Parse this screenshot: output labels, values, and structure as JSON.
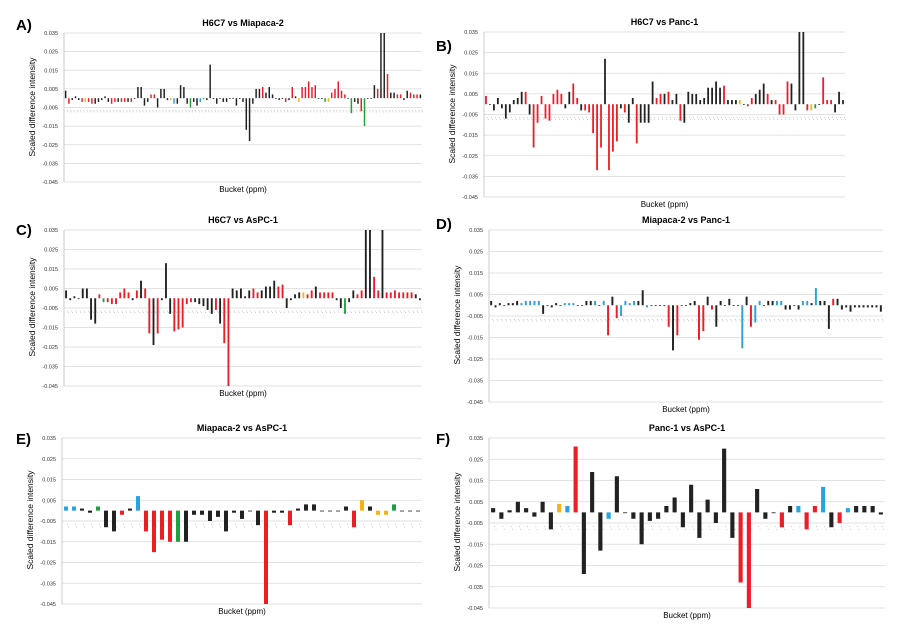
{
  "figure": {
    "colors": {
      "black": "#222222",
      "red": "#ee1c25",
      "green": "#1fa040",
      "blue": "#29a3e0",
      "orange": "#f5b21b",
      "grid": "#d9d9d9",
      "axis": "#bfbfbf"
    }
  },
  "chart_data": [
    {
      "id": "A",
      "letter": "A)",
      "type": "bar",
      "title": "H6C7 vs Miapaca-2",
      "xlabel": "Bucket (ppm)",
      "ylabel": "Scaled difference intensity",
      "ylim": [
        -0.045,
        0.035
      ],
      "yticks": [
        "0.035",
        "0.025",
        "0.015",
        "0.005",
        "-0.005",
        "-0.015",
        "-0.025",
        "-0.035",
        "-0.045"
      ],
      "grid": true,
      "legend": "none",
      "values": [
        0.004,
        -0.003,
        -0.001,
        0.001,
        -0.001,
        -0.002,
        -0.002,
        -0.002,
        -0.003,
        -0.003,
        -0.002,
        -0.001,
        0.001,
        -0.002,
        -0.003,
        -0.002,
        -0.002,
        -0.002,
        -0.002,
        -0.002,
        -0.002,
        0.0,
        0.006,
        0.006,
        -0.004,
        -0.002,
        0.002,
        0.002,
        -0.005,
        0.005,
        0.005,
        -0.001,
        -0.001,
        -0.003,
        -0.003,
        0.007,
        0.006,
        -0.003,
        -0.005,
        -0.002,
        -0.004,
        -0.002,
        0.0,
        -0.001,
        0.018,
        0.0,
        -0.003,
        0.0,
        -0.002,
        -0.002,
        0.0,
        0.0,
        -0.004,
        0.0,
        -0.002,
        -0.017,
        -0.023,
        -0.003,
        0.005,
        0.005,
        0.006,
        0.003,
        0.006,
        0.002,
        0.0,
        -0.001,
        0.0,
        -0.002,
        -0.001,
        0.006,
        0.001,
        -0.002,
        0.006,
        0.006,
        0.009,
        0.006,
        0.007,
        0.0,
        0.0,
        -0.002,
        -0.002,
        0.003,
        0.005,
        0.009,
        0.004,
        0.002,
        0.0,
        -0.008,
        -0.002,
        -0.003,
        -0.007,
        -0.015,
        0.0,
        0.0,
        0.007,
        0.005,
        0.035,
        0.035,
        0.013,
        0.003,
        0.003,
        0.002,
        0.002,
        -0.001,
        0.004,
        0.003,
        0.002,
        0.002,
        0.002
      ],
      "colors": [
        "k",
        "r",
        "k",
        "k",
        "k",
        "r",
        "o",
        "r",
        "r",
        "k",
        "k",
        "k",
        "k",
        "k",
        "r",
        "r",
        "k",
        "r",
        "r",
        "k",
        "r",
        "k",
        "k",
        "k",
        "k",
        "k",
        "r",
        "r",
        "k",
        "k",
        "k",
        "k",
        "o",
        "b",
        "k",
        "k",
        "k",
        "k",
        "g",
        "k",
        "k",
        "b",
        "g",
        "k",
        "k",
        "k",
        "k",
        "k",
        "k",
        "k",
        "k",
        "k",
        "k",
        "k",
        "k",
        "k",
        "k",
        "k",
        "k",
        "k",
        "r",
        "k",
        "k",
        "k",
        "k",
        "k",
        "k",
        "r",
        "k",
        "r",
        "k",
        "o",
        "r",
        "r",
        "r",
        "r",
        "r",
        "k",
        "k",
        "g",
        "o",
        "r",
        "r",
        "r",
        "r",
        "r",
        "k",
        "g",
        "k",
        "k",
        "r",
        "g",
        "k",
        "k",
        "k",
        "r",
        "k",
        "k",
        "r",
        "k",
        "k",
        "r",
        "r",
        "k",
        "k",
        "r",
        "r",
        "r",
        "k"
      ]
    },
    {
      "id": "B",
      "letter": "B)",
      "type": "bar",
      "title": "H6C7 vs Panc-1",
      "xlabel": "Bucket (ppm)",
      "ylabel": "Scaled difference intensity",
      "ylim": [
        -0.045,
        0.035
      ],
      "yticks": [
        "0.035",
        "0.025",
        "0.015",
        "0.005",
        "-0.005",
        "-0.015",
        "-0.025",
        "-0.035",
        "-0.045"
      ],
      "grid": true,
      "legend": "none",
      "values": [
        0.004,
        0.0,
        -0.003,
        0.003,
        -0.002,
        -0.007,
        -0.004,
        0.002,
        0.003,
        0.006,
        0.006,
        -0.005,
        -0.021,
        -0.009,
        0.004,
        -0.007,
        -0.008,
        0.005,
        0.007,
        0.005,
        -0.002,
        0.006,
        0.01,
        0.003,
        -0.003,
        -0.003,
        -0.004,
        -0.014,
        -0.032,
        -0.021,
        0.022,
        -0.032,
        -0.023,
        -0.018,
        -0.002,
        -0.004,
        -0.009,
        0.003,
        -0.019,
        -0.009,
        -0.009,
        -0.009,
        0.011,
        0.003,
        0.005,
        0.005,
        0.006,
        0.002,
        0.005,
        -0.008,
        -0.009,
        0.006,
        0.005,
        0.005,
        0.002,
        0.003,
        0.008,
        0.008,
        0.011,
        0.008,
        0.009,
        0.002,
        0.002,
        0.002,
        0.002,
        0.0,
        -0.001,
        0.003,
        0.005,
        0.007,
        0.01,
        0.005,
        0.002,
        0.002,
        -0.005,
        -0.005,
        0.011,
        0.01,
        -0.003,
        0.035,
        0.035,
        -0.003,
        -0.003,
        -0.002,
        0.0,
        0.013,
        0.002,
        0.002,
        -0.004,
        0.006,
        0.002
      ],
      "colors": [
        "r",
        "k",
        "k",
        "k",
        "k",
        "k",
        "k",
        "k",
        "k",
        "k",
        "r",
        "k",
        "r",
        "r",
        "r",
        "r",
        "r",
        "r",
        "r",
        "r",
        "k",
        "k",
        "r",
        "r",
        "k",
        "r",
        "r",
        "r",
        "r",
        "r",
        "k",
        "r",
        "r",
        "r",
        "k",
        "r",
        "k",
        "k",
        "r",
        "k",
        "k",
        "k",
        "k",
        "r",
        "r",
        "k",
        "r",
        "k",
        "k",
        "r",
        "k",
        "k",
        "k",
        "k",
        "k",
        "k",
        "k",
        "k",
        "k",
        "k",
        "r",
        "k",
        "k",
        "k",
        "o",
        "k",
        "r",
        "r",
        "k",
        "k",
        "k",
        "r",
        "k",
        "r",
        "r",
        "r",
        "r",
        "k",
        "k",
        "k",
        "k",
        "r",
        "o",
        "g",
        "k",
        "r",
        "r",
        "r",
        "k",
        "k",
        "k"
      ]
    },
    {
      "id": "C",
      "letter": "C)",
      "type": "bar",
      "title": "H6C7 vs AsPC-1",
      "xlabel": "Bucket (ppm)",
      "ylabel": "Scaled difference intensity",
      "ylim": [
        -0.045,
        0.035
      ],
      "yticks": [
        "0.035",
        "0.025",
        "0.015",
        "0.005",
        "-0.005",
        "-0.015",
        "-0.025",
        "-0.035",
        "-0.045"
      ],
      "grid": true,
      "legend": "none",
      "values": [
        0.004,
        -0.001,
        0.001,
        0.0,
        0.005,
        0.005,
        -0.011,
        -0.013,
        0.002,
        -0.002,
        -0.002,
        -0.003,
        -0.003,
        0.003,
        0.005,
        0.003,
        -0.001,
        0.004,
        0.009,
        0.005,
        -0.018,
        -0.024,
        -0.018,
        -0.001,
        0.018,
        -0.008,
        -0.017,
        -0.016,
        -0.015,
        -0.003,
        -0.002,
        -0.002,
        -0.003,
        -0.004,
        -0.006,
        -0.008,
        -0.006,
        -0.013,
        -0.023,
        -0.045,
        0.005,
        0.004,
        0.005,
        0.001,
        0.004,
        0.005,
        0.003,
        0.004,
        0.006,
        0.006,
        0.009,
        0.006,
        0.007,
        -0.005,
        -0.001,
        0.002,
        0.003,
        0.003,
        0.002,
        0.004,
        0.006,
        0.003,
        0.003,
        0.003,
        0.003,
        -0.001,
        -0.005,
        -0.008,
        -0.002,
        0.004,
        0.002,
        0.004,
        0.035,
        0.035,
        0.011,
        0.004,
        0.035,
        0.003,
        0.003,
        0.004,
        0.003,
        0.003,
        0.003,
        0.003,
        0.002,
        -0.001
      ],
      "colors": [
        "k",
        "k",
        "k",
        "k",
        "k",
        "k",
        "k",
        "k",
        "r",
        "g",
        "r",
        "r",
        "r",
        "r",
        "r",
        "r",
        "k",
        "r",
        "k",
        "r",
        "r",
        "k",
        "r",
        "k",
        "k",
        "k",
        "r",
        "r",
        "r",
        "r",
        "r",
        "k",
        "k",
        "k",
        "k",
        "k",
        "r",
        "k",
        "r",
        "r",
        "k",
        "k",
        "k",
        "k",
        "k",
        "r",
        "r",
        "k",
        "k",
        "k",
        "k",
        "r",
        "r",
        "k",
        "k",
        "k",
        "k",
        "o",
        "r",
        "r",
        "k",
        "r",
        "r",
        "r",
        "r",
        "k",
        "k",
        "g",
        "k",
        "k",
        "r",
        "r",
        "k",
        "k",
        "r",
        "r",
        "k",
        "r",
        "r",
        "r",
        "r",
        "r",
        "r",
        "r",
        "k",
        "k"
      ]
    },
    {
      "id": "D",
      "letter": "D)",
      "type": "bar",
      "title": "Miapaca-2 vs Panc-1",
      "xlabel": "Bucket (ppm)",
      "ylabel": "Scaled difference intensity",
      "ylim": [
        -0.045,
        0.035
      ],
      "yticks": [
        "0.035",
        "0.025",
        "0.015",
        "0.005",
        "-0.005",
        "-0.015",
        "-0.025",
        "-0.035",
        "-0.045"
      ],
      "grid": true,
      "legend": "none",
      "values": [
        0.002,
        -0.001,
        0.001,
        0.0,
        0.001,
        0.001,
        0.002,
        0.001,
        0.002,
        0.002,
        0.002,
        0.002,
        -0.004,
        0.0,
        -0.001,
        0.001,
        0.0,
        0.001,
        0.001,
        0.001,
        0.0,
        0.0,
        0.002,
        0.002,
        0.002,
        0.0,
        0.002,
        -0.014,
        0.004,
        -0.006,
        -0.005,
        0.002,
        0.001,
        0.002,
        0.002,
        0.007,
        -0.001,
        0.0,
        0.0,
        0.0,
        0.0,
        -0.01,
        -0.021,
        -0.014,
        0.0,
        0.0,
        0.001,
        0.002,
        -0.016,
        -0.012,
        0.004,
        -0.002,
        -0.01,
        0.002,
        0.0,
        0.003,
        0.0,
        0.0,
        -0.02,
        0.004,
        -0.01,
        -0.008,
        0.002,
        0.0,
        0.002,
        0.002,
        0.002,
        0.002,
        -0.002,
        -0.002,
        0.0,
        -0.002,
        0.002,
        0.002,
        0.001,
        0.008,
        0.002,
        0.002,
        -0.011,
        0.003,
        0.003,
        -0.002,
        -0.001,
        -0.003,
        -0.001,
        -0.001,
        -0.001,
        -0.001,
        -0.001,
        -0.001,
        -0.003
      ],
      "colors": [
        "k",
        "k",
        "k",
        "k",
        "k",
        "k",
        "k",
        "b",
        "b",
        "b",
        "b",
        "b",
        "k",
        "k",
        "k",
        "k",
        "k",
        "b",
        "b",
        "b",
        "k",
        "k",
        "k",
        "k",
        "b",
        "k",
        "b",
        "r",
        "k",
        "r",
        "b",
        "b",
        "b",
        "b",
        "k",
        "k",
        "b",
        "k",
        "k",
        "k",
        "k",
        "r",
        "k",
        "r",
        "k",
        "k",
        "k",
        "k",
        "r",
        "r",
        "k",
        "r",
        "k",
        "k",
        "k",
        "k",
        "k",
        "k",
        "b",
        "k",
        "r",
        "b",
        "b",
        "k",
        "k",
        "k",
        "b",
        "b",
        "k",
        "k",
        "k",
        "k",
        "b",
        "b",
        "k",
        "b",
        "k",
        "k",
        "k",
        "r",
        "k",
        "k",
        "k",
        "k",
        "k",
        "k",
        "k",
        "k",
        "k",
        "k",
        "k"
      ]
    },
    {
      "id": "E",
      "letter": "E)",
      "type": "bar",
      "title": "Miapaca-2 vs AsPC-1",
      "xlabel": "Bucket (ppm)",
      "ylabel": "Scaled difference intensity",
      "ylim": [
        -0.045,
        0.035
      ],
      "yticks": [
        "0.035",
        "0.025",
        "0.015",
        "0.005",
        "-0.005",
        "-0.015",
        "-0.025",
        "-0.035",
        "-0.045"
      ],
      "grid": true,
      "legend": "none",
      "values": [
        0.002,
        0.002,
        0.001,
        -0.001,
        0.002,
        -0.008,
        -0.01,
        -0.002,
        0.001,
        0.007,
        -0.01,
        -0.02,
        -0.014,
        -0.015,
        -0.015,
        -0.015,
        -0.002,
        -0.002,
        -0.005,
        -0.003,
        -0.01,
        -0.001,
        -0.004,
        0.0,
        -0.007,
        -0.045,
        -0.001,
        -0.001,
        -0.007,
        0.001,
        0.003,
        0.003,
        0.0,
        0.0,
        0.0,
        0.002,
        -0.008,
        0.005,
        0.002,
        -0.002,
        -0.002,
        0.003,
        0.0,
        0.0,
        0.0
      ],
      "colors": [
        "b",
        "b",
        "k",
        "k",
        "g",
        "k",
        "k",
        "r",
        "k",
        "b",
        "r",
        "r",
        "r",
        "r",
        "g",
        "k",
        "k",
        "k",
        "k",
        "k",
        "k",
        "k",
        "k",
        "k",
        "k",
        "r",
        "k",
        "k",
        "r",
        "k",
        "k",
        "k",
        "k",
        "k",
        "k",
        "k",
        "r",
        "o",
        "k",
        "o",
        "o",
        "g",
        "k",
        "k",
        "k"
      ]
    },
    {
      "id": "F",
      "letter": "F)",
      "type": "bar",
      "title": "Panc-1 vs AsPC-1",
      "xlabel": "Bucket (ppm)",
      "ylabel": "Scaled difference intensity",
      "ylim": [
        -0.045,
        0.035
      ],
      "yticks": [
        "0.035",
        "0.025",
        "0.015",
        "0.005",
        "-0.005",
        "-0.015",
        "-0.025",
        "-0.035",
        "-0.045"
      ],
      "grid": true,
      "legend": "none",
      "values": [
        0.002,
        -0.003,
        0.001,
        0.005,
        0.002,
        -0.002,
        0.005,
        -0.008,
        0.004,
        0.003,
        0.031,
        -0.029,
        0.019,
        -0.018,
        -0.003,
        0.017,
        0.0,
        -0.003,
        -0.015,
        -0.004,
        -0.003,
        0.003,
        0.007,
        -0.007,
        0.013,
        -0.012,
        0.006,
        -0.005,
        0.03,
        -0.012,
        -0.033,
        -0.045,
        0.011,
        -0.003,
        0.0,
        -0.007,
        0.003,
        0.003,
        -0.008,
        0.003,
        0.012,
        -0.007,
        -0.005,
        0.002,
        0.003,
        0.003,
        0.003,
        -0.001
      ],
      "colors": [
        "k",
        "k",
        "k",
        "k",
        "k",
        "k",
        "k",
        "k",
        "o",
        "b",
        "r",
        "k",
        "k",
        "k",
        "b",
        "k",
        "k",
        "k",
        "k",
        "k",
        "k",
        "k",
        "k",
        "k",
        "k",
        "k",
        "k",
        "k",
        "k",
        "k",
        "r",
        "r",
        "k",
        "k",
        "k",
        "r",
        "k",
        "b",
        "r",
        "r",
        "b",
        "k",
        "r",
        "b",
        "k",
        "k",
        "k",
        "k"
      ]
    }
  ]
}
